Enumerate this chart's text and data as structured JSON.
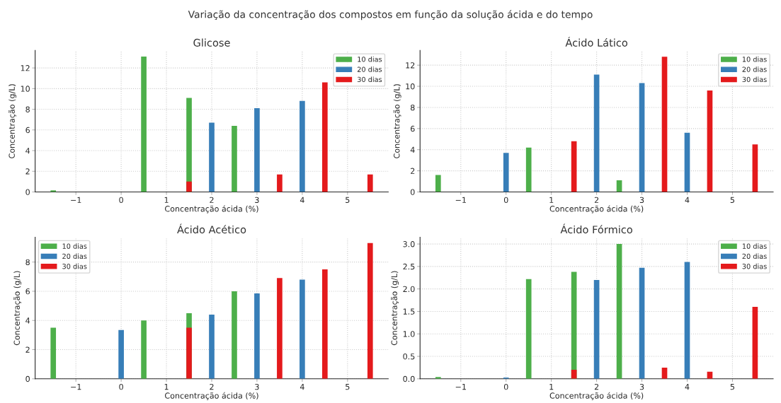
{
  "chart_data": [
    {
      "type": "bar",
      "title": "Glicose",
      "xlabel": "Concentração ácida (%)",
      "ylabel": "Concentração (g/L)",
      "annotations": [
        "Variação da concentração dos compostos em função da solução ácida e do tempo"
      ],
      "xlim": [
        -1.9,
        5.9
      ],
      "xticks": [
        -1,
        0,
        1,
        2,
        3,
        4,
        5
      ],
      "ylim": [
        0,
        13.7
      ],
      "yticks": [
        0,
        2,
        4,
        6,
        8,
        10,
        12
      ],
      "grid": true,
      "legend": "top right",
      "series": [
        {
          "name": "10 dias",
          "color": "#4daf4a",
          "x": [
            -1.5,
            0.5,
            1.5,
            2.5
          ],
          "values": [
            0.15,
            13.1,
            9.1,
            6.4
          ]
        },
        {
          "name": "20 dias",
          "color": "#377eb8",
          "x": [
            2,
            3,
            4
          ],
          "values": [
            6.7,
            8.1,
            8.8
          ]
        },
        {
          "name": "30 dias",
          "color": "#e41a1c",
          "x": [
            1.5,
            3.5,
            4.5,
            5.5
          ],
          "values": [
            1.0,
            1.7,
            10.6,
            1.7
          ]
        }
      ]
    },
    {
      "type": "bar",
      "title": "Ácido Lático",
      "xlabel": "Concentração ácida (%)",
      "ylabel": "Concentração (g/L)",
      "xlim": [
        -1.9,
        5.9
      ],
      "xticks": [
        -1,
        0,
        1,
        2,
        3,
        4,
        5
      ],
      "ylim": [
        0,
        13.4
      ],
      "yticks": [
        0,
        2,
        4,
        6,
        8,
        10,
        12
      ],
      "grid": true,
      "legend": "top right",
      "series": [
        {
          "name": "10 dias",
          "color": "#4daf4a",
          "x": [
            -1.5,
            0.5,
            1.5,
            2.5
          ],
          "values": [
            1.6,
            4.2,
            null,
            1.1
          ]
        },
        {
          "name": "20 dias",
          "color": "#377eb8",
          "x": [
            0,
            2,
            3,
            4
          ],
          "values": [
            3.7,
            11.1,
            10.3,
            5.6
          ]
        },
        {
          "name": "30 dias",
          "color": "#e41a1c",
          "x": [
            1.5,
            3.5,
            4.5,
            5.5
          ],
          "values": [
            4.8,
            12.8,
            9.6,
            4.5
          ]
        }
      ]
    },
    {
      "type": "bar",
      "title": "Ácido Acético",
      "xlabel": "Concentração ácida (%)",
      "ylabel": "Concentração (g/L)",
      "xlim": [
        -1.9,
        5.9
      ],
      "xticks": [
        -1,
        0,
        1,
        2,
        3,
        4,
        5
      ],
      "ylim": [
        0,
        9.7
      ],
      "yticks": [
        0,
        2,
        4,
        6,
        8
      ],
      "grid": true,
      "legend": "top left",
      "series": [
        {
          "name": "10 dias",
          "color": "#4daf4a",
          "x": [
            -1.5,
            0.5,
            1.5,
            2.5
          ],
          "values": [
            3.5,
            4.0,
            4.5,
            6.0
          ]
        },
        {
          "name": "20 dias",
          "color": "#377eb8",
          "x": [
            0,
            2,
            3,
            4
          ],
          "values": [
            3.35,
            4.4,
            5.85,
            6.8
          ]
        },
        {
          "name": "30 dias",
          "color": "#e41a1c",
          "x": [
            1.5,
            3.5,
            4.5,
            5.5
          ],
          "values": [
            3.5,
            6.9,
            7.5,
            9.3
          ]
        }
      ]
    },
    {
      "type": "bar",
      "title": "Ácido Fórmico",
      "xlabel": "Concentração ácida (%)",
      "ylabel": "Concentração (g/L)",
      "xlim": [
        -1.9,
        5.9
      ],
      "xticks": [
        -1,
        0,
        1,
        2,
        3,
        4,
        5
      ],
      "ylim": [
        0,
        3.15
      ],
      "yticks": [
        {
          "value": 0,
          "label": "0.0"
        },
        {
          "value": 0.5,
          "label": "0.5"
        },
        {
          "value": 1,
          "label": "1.0"
        },
        {
          "value": 1.5,
          "label": "1.5"
        },
        {
          "value": 2,
          "label": "2.0"
        },
        {
          "value": 2.5,
          "label": "2.5"
        },
        {
          "value": 3,
          "label": "3.0"
        }
      ],
      "grid": true,
      "legend": "top right",
      "series": [
        {
          "name": "10 dias",
          "color": "#4daf4a",
          "x": [
            -1.5,
            0.5,
            1.5,
            2.5
          ],
          "values": [
            0.04,
            2.22,
            2.38,
            3.0
          ]
        },
        {
          "name": "20 dias",
          "color": "#377eb8",
          "x": [
            0,
            2,
            3,
            4
          ],
          "values": [
            0.03,
            2.2,
            2.47,
            2.6
          ]
        },
        {
          "name": "30 dias",
          "color": "#e41a1c",
          "x": [
            1.5,
            3.5,
            4.5,
            5.5
          ],
          "values": [
            0.2,
            0.25,
            0.16,
            1.6
          ]
        }
      ]
    }
  ]
}
